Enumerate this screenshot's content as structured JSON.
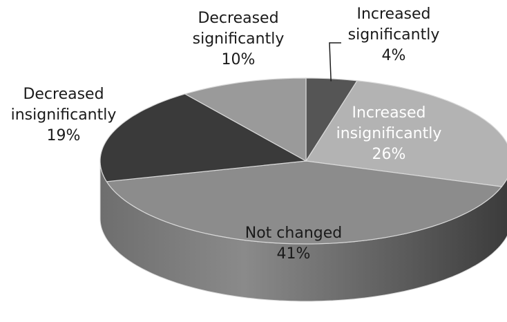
{
  "chart_data": {
    "type": "pie",
    "style": "3d",
    "slices": [
      {
        "label_lines": [
          "Increased",
          "significantly"
        ],
        "value": 4,
        "pct_label": "4%",
        "color": "#555555"
      },
      {
        "label_lines": [
          "Increased",
          "insignificantly"
        ],
        "value": 26,
        "pct_label": "26%",
        "color": "#b3b3b3"
      },
      {
        "label_lines": [
          "Not changed"
        ],
        "value": 41,
        "pct_label": "41%",
        "color": "#8c8c8c"
      },
      {
        "label_lines": [
          "Decreased",
          "insignificantly"
        ],
        "value": 19,
        "pct_label": "19%",
        "color": "#3a3a3a"
      },
      {
        "label_lines": [
          "Decreased",
          "significantly"
        ],
        "value": 10,
        "pct_label": "10%",
        "color": "#9a9a9a"
      }
    ],
    "legend": "none",
    "data_labels": "category and percent"
  }
}
